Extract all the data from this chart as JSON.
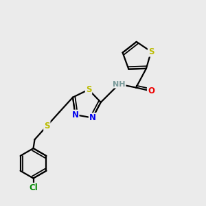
{
  "background_color": "#ebebeb",
  "bond_color": "#000000",
  "atom_colors": {
    "S": "#bbbb00",
    "N": "#0000ee",
    "O": "#ee0000",
    "Cl": "#008800",
    "H": "#7a9a9a"
  },
  "figsize": [
    3.0,
    3.0
  ],
  "dpi": 100
}
